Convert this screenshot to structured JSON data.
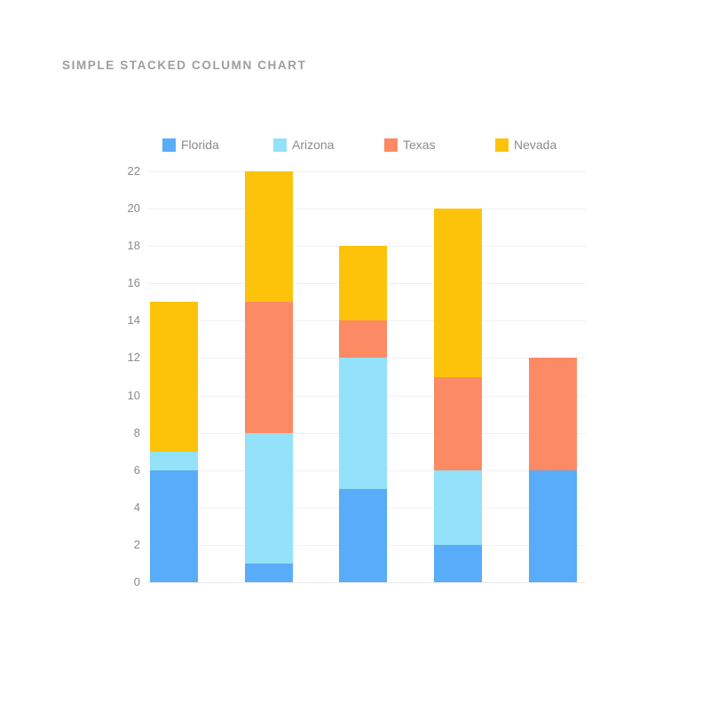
{
  "chart_data": {
    "type": "bar",
    "stacked": true,
    "title": "SIMPLE STACKED COLUMN CHART",
    "categories": [
      "",
      "",
      "",
      "",
      ""
    ],
    "x_axis_labels_visible": false,
    "series": [
      {
        "name": "Florida",
        "color": "#58ACF8",
        "values": [
          6,
          1,
          5,
          2,
          6
        ]
      },
      {
        "name": "Arizona",
        "color": "#93E2F9",
        "values": [
          1,
          7,
          7,
          4,
          0
        ]
      },
      {
        "name": "Texas",
        "color": "#FC8A65",
        "values": [
          0,
          7,
          2,
          5,
          6
        ]
      },
      {
        "name": "Nevada",
        "color": "#FDC30B",
        "values": [
          8,
          7,
          4,
          9,
          0
        ]
      }
    ],
    "column_totals": [
      15,
      22,
      18,
      20,
      12
    ],
    "ylim": [
      0,
      22
    ],
    "ytick_step": 2,
    "yticks": [
      0,
      2,
      4,
      6,
      8,
      10,
      12,
      14,
      16,
      18,
      20,
      22
    ],
    "grid": true,
    "legend_position": "top"
  },
  "colors": {
    "background": "#ffffff",
    "title_text": "#9e9e9e",
    "axis_text": "#8b8b8b",
    "legend_text": "#8b8b8b",
    "gridline": "#f2f2f2",
    "baseline": "#e9e9e9"
  }
}
